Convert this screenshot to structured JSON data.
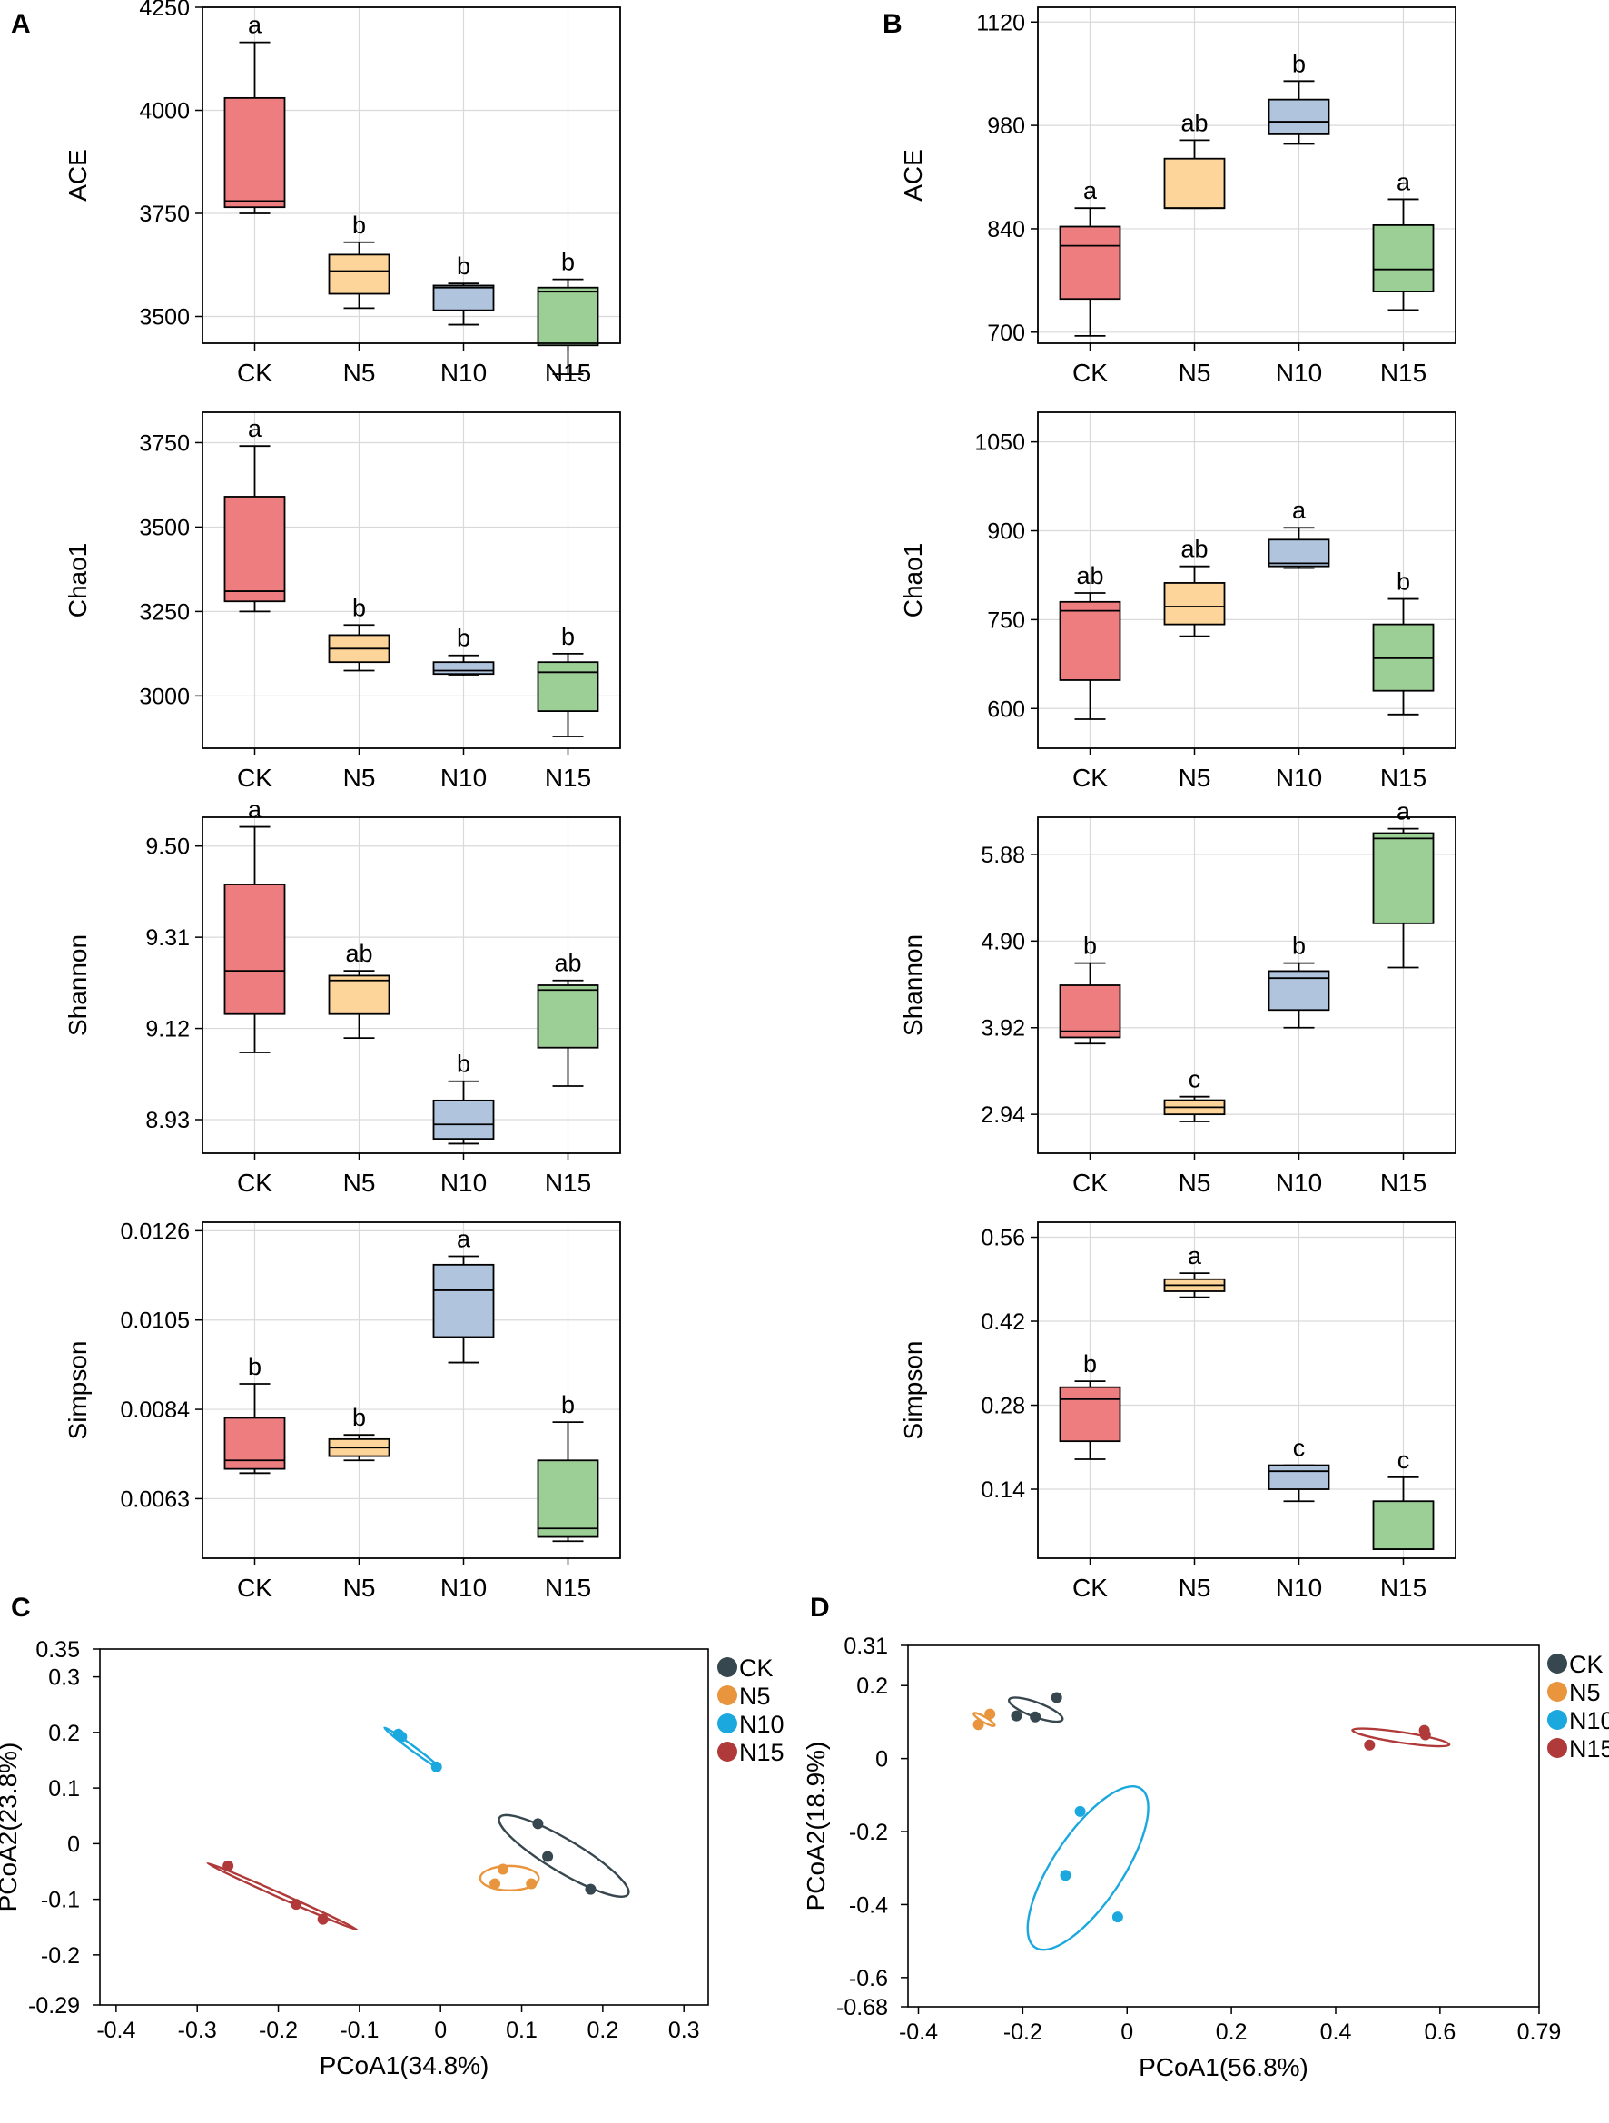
{
  "panel_labels": [
    "A",
    "B",
    "C",
    "D"
  ],
  "colors": {
    "CK": "#ee7d80",
    "N5": "#fdd49a",
    "N10": "#b0c4de",
    "N15": "#9ccf95"
  },
  "chart_data": [
    {
      "id": "A1",
      "type": "box",
      "panel": "A",
      "title": "",
      "ylabel": "ACE",
      "xlabel": "",
      "categories": [
        "CK",
        "N5",
        "N10",
        "N15"
      ],
      "ylim": [
        3435,
        4250
      ],
      "yticks": [
        3500,
        3750,
        4000,
        4250
      ],
      "boxes": [
        {
          "group": "CK",
          "min": 3750,
          "q1": 3765,
          "median": 3780,
          "q3": 4030,
          "max": 4165,
          "letter": "a"
        },
        {
          "group": "N5",
          "min": 3520,
          "q1": 3555,
          "median": 3610,
          "q3": 3650,
          "max": 3680,
          "letter": "b"
        },
        {
          "group": "N10",
          "min": 3480,
          "q1": 3515,
          "median": 3570,
          "q3": 3575,
          "max": 3580,
          "letter": "b"
        },
        {
          "group": "N15",
          "min": 3360,
          "q1": 3430,
          "median": 3560,
          "q3": 3570,
          "max": 3590,
          "letter": "b"
        }
      ]
    },
    {
      "id": "A2",
      "type": "box",
      "panel": "A",
      "title": "",
      "ylabel": "Chao1",
      "xlabel": "",
      "categories": [
        "CK",
        "N5",
        "N10",
        "N15"
      ],
      "ylim": [
        2845,
        3840
      ],
      "yticks": [
        3000,
        3250,
        3500,
        3750
      ],
      "boxes": [
        {
          "group": "CK",
          "min": 3250,
          "q1": 3280,
          "median": 3310,
          "q3": 3590,
          "max": 3740,
          "letter": "a"
        },
        {
          "group": "N5",
          "min": 3075,
          "q1": 3100,
          "median": 3140,
          "q3": 3180,
          "max": 3210,
          "letter": "b"
        },
        {
          "group": "N10",
          "min": 3060,
          "q1": 3065,
          "median": 3075,
          "q3": 3100,
          "max": 3120,
          "letter": "b"
        },
        {
          "group": "N15",
          "min": 2880,
          "q1": 2955,
          "median": 3070,
          "q3": 3100,
          "max": 3125,
          "letter": "b"
        }
      ]
    },
    {
      "id": "A3",
      "type": "box",
      "panel": "A",
      "title": "",
      "ylabel": "Shannon",
      "xlabel": "",
      "categories": [
        "CK",
        "N5",
        "N10",
        "N15"
      ],
      "ylim": [
        8.86,
        9.56
      ],
      "yticks": [
        8.93,
        9.12,
        9.31,
        9.5
      ],
      "ytick_labels": [
        "8.93",
        "9.12",
        "9.31",
        "9.50"
      ],
      "boxes": [
        {
          "group": "CK",
          "min": 9.07,
          "q1": 9.15,
          "median": 9.24,
          "q3": 9.42,
          "max": 9.54,
          "letter": "a"
        },
        {
          "group": "N5",
          "min": 9.1,
          "q1": 9.15,
          "median": 9.22,
          "q3": 9.23,
          "max": 9.24,
          "letter": "ab"
        },
        {
          "group": "N10",
          "min": 8.88,
          "q1": 8.89,
          "median": 8.92,
          "q3": 8.97,
          "max": 9.01,
          "letter": "b"
        },
        {
          "group": "N15",
          "min": 9.0,
          "q1": 9.08,
          "median": 9.2,
          "q3": 9.21,
          "max": 9.22,
          "letter": "ab"
        }
      ]
    },
    {
      "id": "A4",
      "type": "box",
      "panel": "A",
      "title": "",
      "ylabel": "Simpson",
      "xlabel": "",
      "categories": [
        "CK",
        "N5",
        "N10",
        "N15"
      ],
      "ylim": [
        0.0049,
        0.0128
      ],
      "yticks": [
        0.0063,
        0.0084,
        0.0105,
        0.0126
      ],
      "ytick_labels": [
        "0.0063",
        "0.0084",
        "0.0105",
        "0.0126"
      ],
      "boxes": [
        {
          "group": "CK",
          "min": 0.0069,
          "q1": 0.007,
          "median": 0.0072,
          "q3": 0.0082,
          "max": 0.009,
          "letter": "b"
        },
        {
          "group": "N5",
          "min": 0.0072,
          "q1": 0.0073,
          "median": 0.0075,
          "q3": 0.0077,
          "max": 0.0078,
          "letter": "b"
        },
        {
          "group": "N10",
          "min": 0.0095,
          "q1": 0.0101,
          "median": 0.0112,
          "q3": 0.0118,
          "max": 0.012,
          "letter": "a"
        },
        {
          "group": "N15",
          "min": 0.0053,
          "q1": 0.0054,
          "median": 0.0056,
          "q3": 0.0072,
          "max": 0.0081,
          "letter": "b"
        }
      ]
    },
    {
      "id": "B1",
      "type": "box",
      "panel": "B",
      "title": "",
      "ylabel": "ACE",
      "xlabel": "",
      "categories": [
        "CK",
        "N5",
        "N10",
        "N15"
      ],
      "ylim": [
        685,
        1140
      ],
      "yticks": [
        700,
        840,
        980,
        1120
      ],
      "boxes": [
        {
          "group": "CK",
          "min": 695,
          "q1": 745,
          "median": 817,
          "q3": 843,
          "max": 868,
          "letter": "a"
        },
        {
          "group": "N5",
          "min": 868,
          "q1": 868,
          "median": 868,
          "q3": 935,
          "max": 960,
          "letter": "ab"
        },
        {
          "group": "N10",
          "min": 955,
          "q1": 968,
          "median": 985,
          "q3": 1015,
          "max": 1040,
          "letter": "b"
        },
        {
          "group": "N15",
          "min": 730,
          "q1": 755,
          "median": 785,
          "q3": 845,
          "max": 880,
          "letter": "a"
        }
      ]
    },
    {
      "id": "B2",
      "type": "box",
      "panel": "B",
      "title": "",
      "ylabel": "Chao1",
      "xlabel": "",
      "categories": [
        "CK",
        "N5",
        "N10",
        "N15"
      ],
      "ylim": [
        533,
        1100
      ],
      "yticks": [
        600,
        750,
        900,
        1050
      ],
      "boxes": [
        {
          "group": "CK",
          "min": 582,
          "q1": 648,
          "median": 765,
          "q3": 780,
          "max": 795,
          "letter": "ab"
        },
        {
          "group": "N5",
          "min": 722,
          "q1": 742,
          "median": 772,
          "q3": 812,
          "max": 840,
          "letter": "ab"
        },
        {
          "group": "N10",
          "min": 837,
          "q1": 840,
          "median": 845,
          "q3": 885,
          "max": 905,
          "letter": "a"
        },
        {
          "group": "N15",
          "min": 590,
          "q1": 630,
          "median": 685,
          "q3": 742,
          "max": 785,
          "letter": "b"
        }
      ]
    },
    {
      "id": "B3",
      "type": "box",
      "panel": "B",
      "title": "",
      "ylabel": "Shannon",
      "xlabel": "",
      "categories": [
        "CK",
        "N5",
        "N10",
        "N15"
      ],
      "ylim": [
        2.5,
        6.3
      ],
      "yticks": [
        2.94,
        3.92,
        4.9,
        5.88
      ],
      "ytick_labels": [
        "2.94",
        "3.92",
        "4.90",
        "5.88"
      ],
      "boxes": [
        {
          "group": "CK",
          "min": 3.74,
          "q1": 3.81,
          "median": 3.88,
          "q3": 4.4,
          "max": 4.65,
          "letter": "b"
        },
        {
          "group": "N5",
          "min": 2.86,
          "q1": 2.94,
          "median": 3.02,
          "q3": 3.1,
          "max": 3.14,
          "letter": "c"
        },
        {
          "group": "N10",
          "min": 3.92,
          "q1": 4.12,
          "median": 4.48,
          "q3": 4.56,
          "max": 4.65,
          "letter": "b"
        },
        {
          "group": "N15",
          "min": 4.6,
          "q1": 5.1,
          "median": 6.06,
          "q3": 6.12,
          "max": 6.17,
          "letter": "a"
        }
      ]
    },
    {
      "id": "B4",
      "type": "box",
      "panel": "B",
      "title": "",
      "ylabel": "Simpson",
      "xlabel": "",
      "categories": [
        "CK",
        "N5",
        "N10",
        "N15"
      ],
      "ylim": [
        0.025,
        0.585
      ],
      "yticks": [
        0.14,
        0.28,
        0.42,
        0.56
      ],
      "ytick_labels": [
        "0.14",
        "0.28",
        "0.42",
        "0.56"
      ],
      "boxes": [
        {
          "group": "CK",
          "min": 0.19,
          "q1": 0.22,
          "median": 0.29,
          "q3": 0.31,
          "max": 0.32,
          "letter": "b"
        },
        {
          "group": "N5",
          "min": 0.46,
          "q1": 0.47,
          "median": 0.48,
          "q3": 0.49,
          "max": 0.5,
          "letter": "a"
        },
        {
          "group": "N10",
          "min": 0.12,
          "q1": 0.14,
          "median": 0.17,
          "q3": 0.18,
          "max": 0.18,
          "letter": "c"
        },
        {
          "group": "N15",
          "min": 0.04,
          "q1": 0.04,
          "median": 0.04,
          "q3": 0.12,
          "max": 0.16,
          "letter": "c"
        }
      ]
    },
    {
      "id": "C",
      "type": "scatter",
      "panel": "C",
      "title": "",
      "xlabel": "PCoA1(34.8%)",
      "ylabel": "PCoA2(23.8%)",
      "xlim": [
        -0.42,
        0.33
      ],
      "ylim": [
        -0.29,
        0.35
      ],
      "xticks": [
        -0.4,
        -0.3,
        -0.2,
        -0.1,
        0,
        0.1,
        0.2,
        0.3
      ],
      "xtick_labels": [
        "-0.4",
        "-0.3",
        "-0.2",
        "-0.1",
        "0",
        "0.1",
        "0.2",
        "0.3"
      ],
      "yticks": [
        0.35,
        0.3,
        0.2,
        0.1,
        0,
        -0.1,
        -0.2,
        -0.29
      ],
      "ytick_labels": [
        "0.35",
        "0.3",
        "0.2",
        "0.1",
        "0",
        "-0.1",
        "-0.2",
        "-0.29"
      ],
      "legend": [
        "CK",
        "N5",
        "N10",
        "N15"
      ],
      "legend_colors": {
        "CK": "#37474f",
        "N5": "#e8953d",
        "N10": "#1ba8de",
        "N15": "#b03a3a"
      },
      "series": [
        {
          "name": "CK",
          "points": [
            [
              0.12,
              0.036
            ],
            [
              0.132,
              -0.023
            ],
            [
              0.185,
              -0.082
            ]
          ],
          "ellipse": {
            "cx": 0.152,
            "cy": -0.022,
            "a": 0.105,
            "b": 0.024,
            "angle_deg": -41
          }
        },
        {
          "name": "N5",
          "points": [
            [
              0.077,
              -0.046
            ],
            [
              0.067,
              -0.072
            ],
            [
              0.112,
              -0.072
            ]
          ],
          "ellipse": {
            "cx": 0.085,
            "cy": -0.062,
            "a": 0.036,
            "b": 0.022,
            "angle_deg": 0
          }
        },
        {
          "name": "N10",
          "points": [
            [
              -0.052,
              0.197
            ],
            [
              -0.048,
              0.192
            ],
            [
              -0.005,
              0.138
            ]
          ],
          "ellipse": {
            "cx": -0.035,
            "cy": 0.172,
            "a": 0.05,
            "b": 0.003,
            "angle_deg": -47
          }
        },
        {
          "name": "N15",
          "points": [
            [
              -0.262,
              -0.04
            ],
            [
              -0.178,
              -0.109
            ],
            [
              -0.145,
              -0.136
            ]
          ],
          "ellipse": {
            "cx": -0.195,
            "cy": -0.095,
            "a": 0.11,
            "b": 0.002,
            "angle_deg": -33
          }
        }
      ]
    },
    {
      "id": "D",
      "type": "scatter",
      "panel": "D",
      "title": "",
      "xlabel": "PCoA1(56.8%)",
      "ylabel": "PCoA2(18.9%)",
      "xlim": [
        -0.42,
        0.79
      ],
      "ylim": [
        -0.68,
        0.31
      ],
      "xticks": [
        -0.4,
        -0.2,
        0,
        0.2,
        0.4,
        0.6,
        0.79
      ],
      "xtick_labels": [
        "-0.4",
        "-0.2",
        "0",
        "0.2",
        "0.4",
        "0.6",
        "0.79"
      ],
      "yticks": [
        0.31,
        0.2,
        0,
        -0.2,
        -0.4,
        -0.6,
        -0.68
      ],
      "ytick_labels": [
        "0.31",
        "0.2",
        "0",
        "-0.2",
        "-0.4",
        "-0.6",
        "-0.68"
      ],
      "legend": [
        "CK",
        "N5",
        "N10",
        "N15"
      ],
      "legend_colors": {
        "CK": "#37474f",
        "N5": "#e8953d",
        "N10": "#1ba8de",
        "N15": "#b03a3a"
      },
      "series": [
        {
          "name": "CK",
          "points": [
            [
              -0.212,
              0.117
            ],
            [
              -0.176,
              0.114
            ],
            [
              -0.135,
              0.167
            ]
          ],
          "ellipse": {
            "cx": -0.175,
            "cy": 0.134,
            "a": 0.058,
            "b": 0.018,
            "angle_deg": -28
          }
        },
        {
          "name": "N5",
          "points": [
            [
              -0.285,
              0.093
            ],
            [
              -0.263,
              0.122
            ]
          ],
          "ellipse": {
            "cx": -0.274,
            "cy": 0.107,
            "a": 0.026,
            "b": 0.006,
            "angle_deg": -40
          }
        },
        {
          "name": "N10",
          "points": [
            [
              -0.09,
              -0.145
            ],
            [
              -0.118,
              -0.32
            ],
            [
              -0.018,
              -0.434
            ]
          ],
          "ellipse": {
            "cx": -0.075,
            "cy": -0.3,
            "a": 0.24,
            "b": 0.07,
            "angle_deg": 65
          }
        },
        {
          "name": "N15",
          "points": [
            [
              0.465,
              0.037
            ],
            [
              0.57,
              0.077
            ],
            [
              0.572,
              0.065
            ]
          ],
          "ellipse": {
            "cx": 0.525,
            "cy": 0.058,
            "a": 0.095,
            "b": 0.014,
            "angle_deg": -12
          }
        }
      ]
    }
  ]
}
